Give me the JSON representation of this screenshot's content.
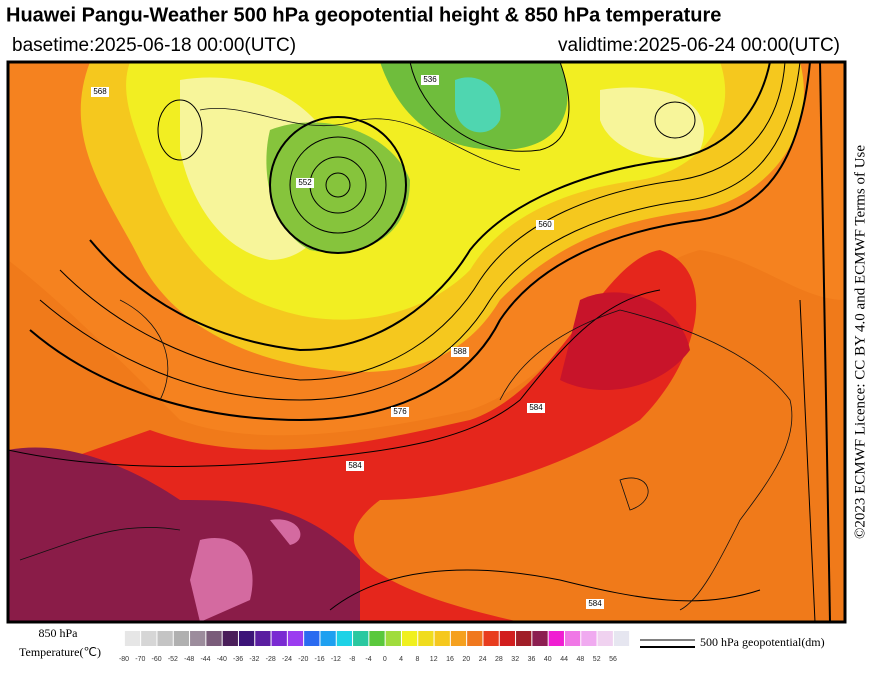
{
  "header": {
    "title": "Huawei Pangu-Weather 500 hPa geopotential height & 850 hPa temperature",
    "basetime": "basetime:2025-06-18 00:00(UTC)",
    "validtime": "validtime:2025-06-24 00:00(UTC)"
  },
  "licence": "©2023 ECMWF Licence: CC BY 4.0 and ECMWF Terms of Use",
  "colorbar": {
    "label": [
      "850 hPa",
      "Temperature(℃)"
    ],
    "ticks": [
      -80,
      -70,
      -60,
      -52,
      -48,
      -44,
      -40,
      -36,
      -32,
      -28,
      -24,
      -20,
      -16,
      -12,
      -8,
      -4,
      0,
      4,
      8,
      12,
      16,
      20,
      24,
      28,
      32,
      36,
      40,
      44,
      48,
      52,
      56
    ],
    "colors": [
      "#e6e6e6",
      "#d6d6d6",
      "#c4c4c4",
      "#b0b0b0",
      "#9c8c9c",
      "#7a5c7a",
      "#4a1e5a",
      "#3c1478",
      "#5a1ea0",
      "#7a2ad2",
      "#9b3cf0",
      "#2a6af0",
      "#1ea0f0",
      "#1ed2e6",
      "#2ac8a0",
      "#5ac83c",
      "#a0dc3c",
      "#f0f01e",
      "#f0dc1e",
      "#f5c81e",
      "#f5a01e",
      "#f0781e",
      "#e83c1e",
      "#d21e1e",
      "#a01e28",
      "#8c1e50",
      "#f01ed2",
      "#f078e6",
      "#f0aaf0",
      "#f0d2f0",
      "#e6e6f0"
    ]
  },
  "legend": {
    "label": "500 hPa geopotential(dm)"
  },
  "map": {
    "contour_labels": [
      "576",
      "584",
      "584",
      "560",
      "588",
      "552",
      "536",
      "568",
      "584"
    ]
  }
}
